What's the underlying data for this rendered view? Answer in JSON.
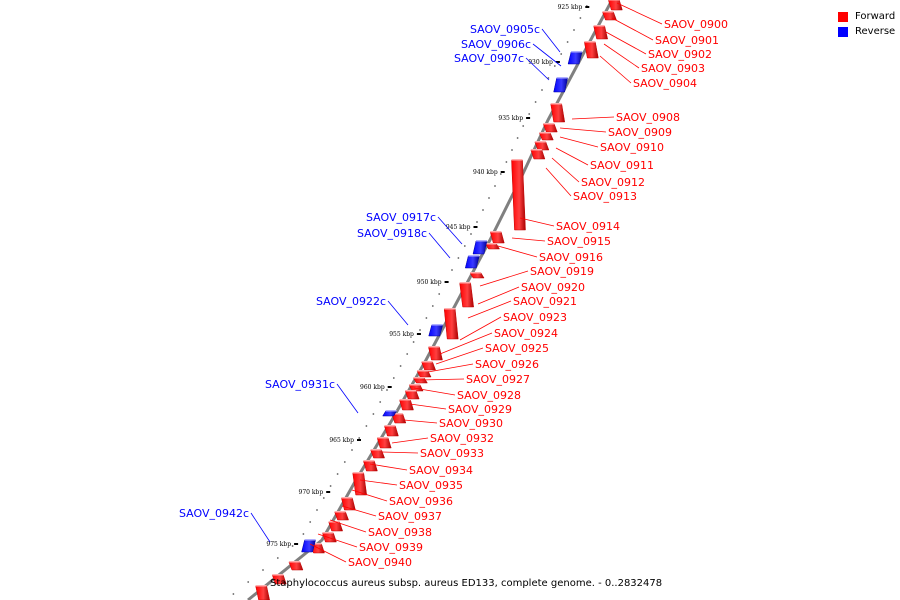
{
  "caption": "Staphylococcus aureus subsp. aureus ED133, complete genome. - 0..2832478",
  "colors": {
    "forward": "#ff0000",
    "reverse": "#0000ff",
    "backbone": "#808080"
  },
  "legend": [
    {
      "label": "Forward",
      "color": "#ff0000"
    },
    {
      "label": "Reverse",
      "color": "#0000ff"
    }
  ],
  "scale_ticks": [
    "925 kbp",
    "930 kbp",
    "935 kbp",
    "940 kbp",
    "945 kbp",
    "950 kbp",
    "955 kbp",
    "960 kbp",
    "965 kbp",
    "970 kbp",
    "975 kbp"
  ],
  "forward_genes": [
    "SAOV_0900",
    "SAOV_0901",
    "SAOV_0902",
    "SAOV_0903",
    "SAOV_0904",
    "SAOV_0908",
    "SAOV_0909",
    "SAOV_0910",
    "SAOV_0911",
    "SAOV_0912",
    "SAOV_0913",
    "SAOV_0914",
    "SAOV_0915",
    "SAOV_0916",
    "SAOV_0919",
    "SAOV_0920",
    "SAOV_0921",
    "SAOV_0923",
    "SAOV_0924",
    "SAOV_0925",
    "SAOV_0926",
    "SAOV_0927",
    "SAOV_0928",
    "SAOV_0929",
    "SAOV_0930",
    "SAOV_0932",
    "SAOV_0933",
    "SAOV_0934",
    "SAOV_0935",
    "SAOV_0936",
    "SAOV_0937",
    "SAOV_0938",
    "SAOV_0939",
    "SAOV_0940"
  ],
  "reverse_genes": [
    "SAOV_0905c",
    "SAOV_0906c",
    "SAOV_0907c",
    "SAOV_0917c",
    "SAOV_0918c",
    "SAOV_0922c",
    "SAOV_0931c",
    "SAOV_0942c"
  ]
}
